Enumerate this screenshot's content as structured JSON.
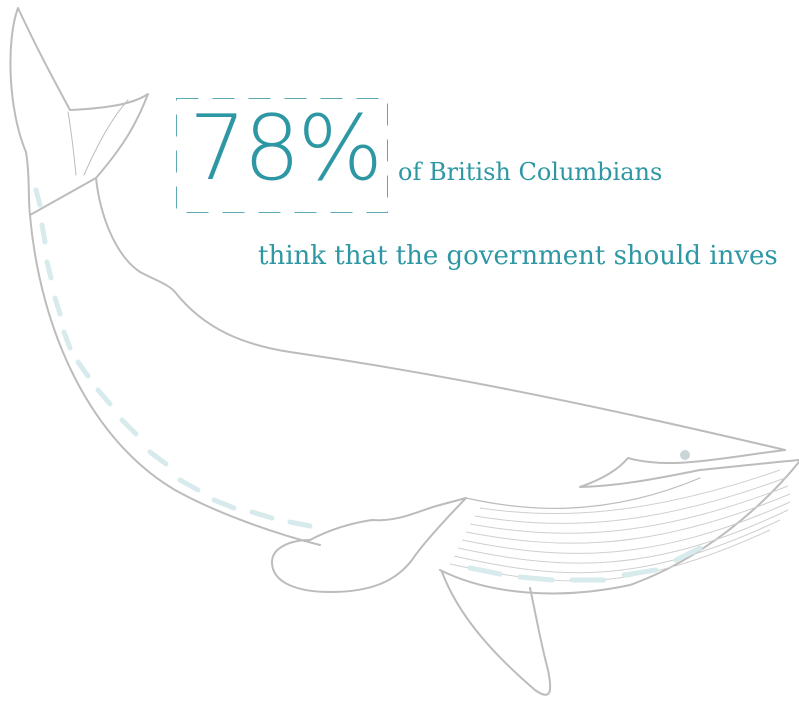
{
  "stat": {
    "value": "78%",
    "subject": "of British Columbians",
    "statement": "think that the government should inves"
  },
  "colors": {
    "accent": "#2e97a4",
    "outline": "#bcbcbc",
    "dash": "#d7ebed",
    "frame": "#5aa9b3"
  }
}
